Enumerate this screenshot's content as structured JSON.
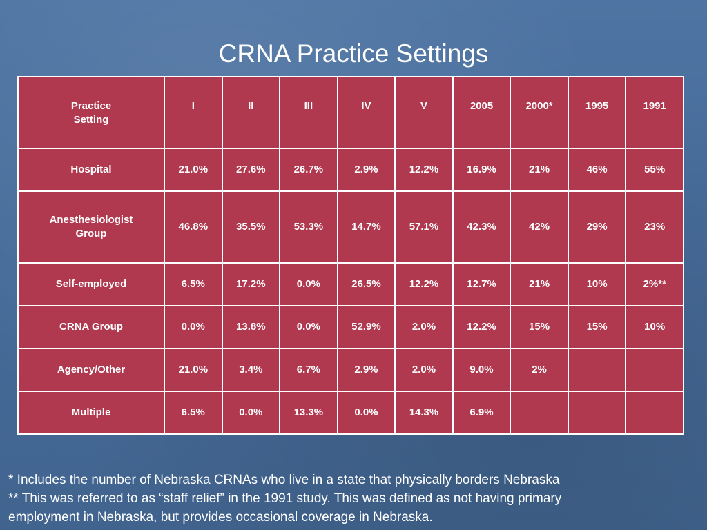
{
  "title": "CRNA Practice Settings",
  "table": {
    "header_lines": [
      "Practice",
      "Setting"
    ],
    "columns": [
      "I",
      "II",
      "III",
      "IV",
      "V",
      "2005",
      "2000*",
      "1995",
      "1991"
    ],
    "rows": [
      {
        "label_lines": [
          "Hospital"
        ],
        "values": [
          "21.0%",
          "27.6%",
          "26.7%",
          "2.9%",
          "12.2%",
          "16.9%",
          "21%",
          "46%",
          "55%"
        ]
      },
      {
        "label_lines": [
          "Anesthesiologist",
          "Group"
        ],
        "values": [
          "46.8%",
          "35.5%",
          "53.3%",
          "14.7%",
          "57.1%",
          "42.3%",
          "42%",
          "29%",
          "23%"
        ]
      },
      {
        "label_lines": [
          "Self-employed"
        ],
        "values": [
          "6.5%",
          "17.2%",
          "0.0%",
          "26.5%",
          "12.2%",
          "12.7%",
          "21%",
          "10%",
          "2%**"
        ]
      },
      {
        "label_lines": [
          "CRNA Group"
        ],
        "values": [
          "0.0%",
          "13.8%",
          "0.0%",
          "52.9%",
          "2.0%",
          "12.2%",
          "15%",
          "15%",
          "10%"
        ]
      },
      {
        "label_lines": [
          "Agency/Other"
        ],
        "values": [
          "21.0%",
          "3.4%",
          "6.7%",
          "2.9%",
          "2.0%",
          "9.0%",
          "2%",
          "",
          ""
        ]
      },
      {
        "label_lines": [
          "Multiple"
        ],
        "values": [
          "6.5%",
          "0.0%",
          "13.3%",
          "0.0%",
          "14.3%",
          "6.9%",
          "",
          "",
          ""
        ]
      }
    ]
  },
  "footnotes": {
    "note1": "*   Includes the number of Nebraska CRNAs who live in a state that physically borders Nebraska",
    "note2_line1": "** This was referred to as “staff relief” in the 1991 study.  This was defined as not having primary",
    "note2_line2": "employment in Nebraska, but provides occasional coverage in Nebraska."
  }
}
